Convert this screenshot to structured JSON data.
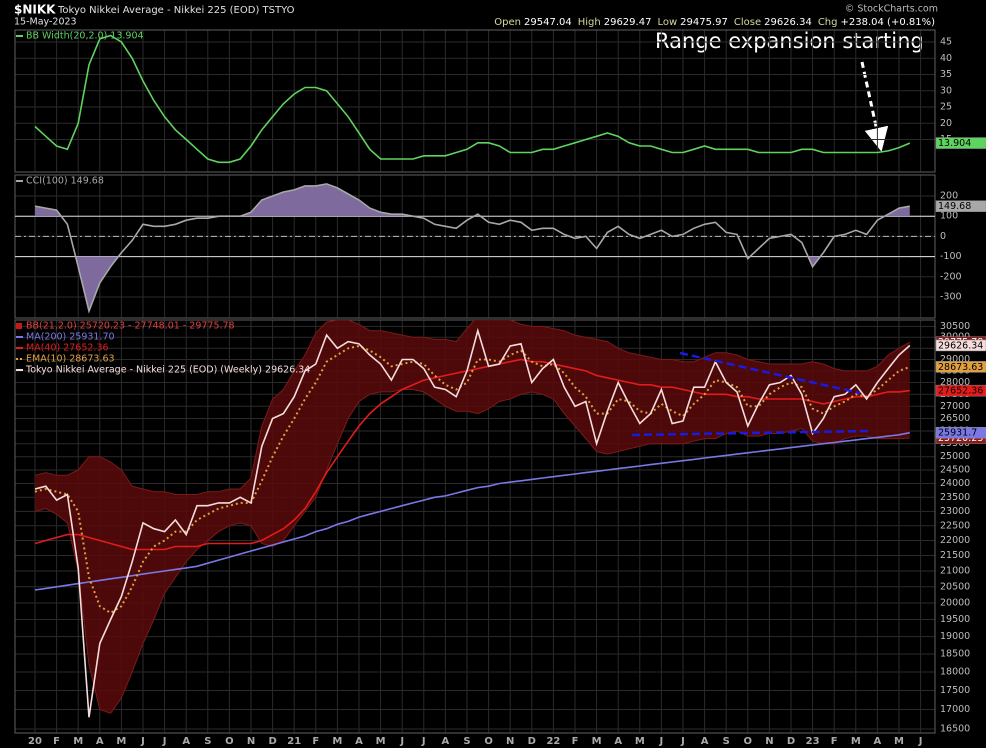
{
  "header": {
    "symbol": "$NIKK",
    "name": "Tokyo Nikkei Average - Nikkei 225 (EOD) TSTYO",
    "date": "15-May-2023",
    "credit": "© StockCharts.com",
    "quote": [
      {
        "label": "Open",
        "value": 29547.04
      },
      {
        "label": "High",
        "value": 29629.47
      },
      {
        "label": "Low",
        "value": 29475.97
      },
      {
        "label": "Close",
        "value": 29626.34
      },
      {
        "label": "Chg",
        "value": "+238.04 (+0.81%)"
      }
    ]
  },
  "chart_data": [
    {
      "type": "line",
      "annotation": "Range expansion starting",
      "ylim": [
        5,
        48.7
      ],
      "yticks": [
        15,
        20,
        25,
        30,
        35,
        40,
        45
      ],
      "grid": true,
      "series": [
        {
          "name": "BB Width(20,2.0) 13.904",
          "color": "#5fd35f",
          "values": [
            19,
            16,
            13,
            12,
            20,
            38,
            46,
            47,
            45,
            40,
            33,
            27,
            22,
            18,
            15,
            12,
            9,
            8,
            8,
            9,
            13,
            18,
            22,
            26,
            29,
            31,
            31,
            30,
            26,
            22,
            17,
            12,
            9,
            9,
            9,
            9,
            10,
            10,
            10,
            11,
            12,
            14,
            14,
            13,
            11,
            11,
            11,
            12,
            12,
            13,
            14,
            15,
            16,
            17,
            16,
            14,
            13,
            13,
            12,
            11,
            11,
            12,
            13,
            12,
            12,
            12,
            12,
            11,
            11,
            11,
            11,
            12,
            12,
            11,
            11,
            11,
            11,
            11,
            11,
            11.5,
            12.5,
            13.904,
            null,
            null
          ]
        }
      ]
    },
    {
      "type": "line",
      "ylim": [
        -404,
        304
      ],
      "yticks": [
        -300,
        -200,
        -100,
        0,
        100,
        200
      ],
      "grid": true,
      "reference_lines": [
        100,
        0,
        -100
      ],
      "fill_color": "#7e6a9c",
      "series": [
        {
          "name": "CCI(100) 149.68",
          "color": "#a8a8a8",
          "values": [
            150,
            140,
            130,
            60,
            -150,
            -370,
            -230,
            -150,
            -80,
            -20,
            60,
            50,
            50,
            60,
            80,
            90,
            90,
            100,
            100,
            100,
            120,
            180,
            200,
            220,
            230,
            250,
            250,
            260,
            240,
            210,
            180,
            140,
            120,
            110,
            110,
            100,
            90,
            60,
            50,
            40,
            80,
            110,
            70,
            60,
            80,
            70,
            30,
            40,
            40,
            10,
            -10,
            0,
            -60,
            20,
            50,
            10,
            -10,
            10,
            30,
            0,
            10,
            40,
            60,
            70,
            20,
            10,
            -110,
            -60,
            -10,
            0,
            10,
            -30,
            -150,
            -80,
            0,
            10,
            30,
            10,
            80,
            110,
            140,
            149.68,
            null,
            null
          ]
        }
      ]
    },
    {
      "type": "line",
      "log": true,
      "ylim": [
        16400,
        30800
      ],
      "grid": true,
      "yticks": [
        16500,
        17000,
        17500,
        18000,
        18500,
        19000,
        19500,
        20000,
        20500,
        21000,
        21500,
        22000,
        22500,
        23000,
        23500,
        24000,
        24500,
        25000,
        25500,
        26000,
        26500,
        27000,
        27500,
        28000,
        28500,
        29000,
        29500,
        30000,
        30500
      ],
      "categories": [
        "20",
        null,
        "F",
        null,
        "M",
        null,
        "A",
        null,
        "M",
        null,
        "J",
        null,
        "J",
        null,
        "A",
        null,
        "S",
        null,
        "O",
        null,
        "N",
        null,
        "D",
        null,
        "21",
        null,
        "F",
        null,
        "M",
        null,
        "A",
        null,
        "M",
        null,
        "J",
        null,
        "J",
        null,
        "A",
        null,
        "S",
        null,
        "O",
        null,
        "N",
        null,
        "D",
        null,
        "22",
        null,
        "F",
        null,
        "M",
        null,
        "A",
        null,
        "M",
        null,
        "J",
        null,
        "J",
        null,
        "A",
        null,
        "S",
        null,
        "O",
        null,
        "N",
        null,
        "D",
        null,
        "23",
        null,
        "F",
        null,
        "M",
        null,
        "A",
        null,
        "M",
        null,
        "J",
        null
      ],
      "series": [
        {
          "name": "BB(21,2.0) 25720.23 - 27748.01 - 29775.78",
          "color": "#c41a1a",
          "fill": "#5a0a0a",
          "upper": [
            24300,
            24400,
            24300,
            24300,
            24500,
            25000,
            25000,
            24800,
            24500,
            23900,
            23800,
            23700,
            23700,
            23600,
            23600,
            23600,
            23700,
            23700,
            23800,
            23800,
            24200,
            26200,
            27300,
            27700,
            28500,
            29200,
            30200,
            30700,
            30800,
            30800,
            30600,
            30300,
            30300,
            30200,
            30100,
            30000,
            30000,
            29900,
            29900,
            29800,
            30400,
            31000,
            31000,
            30900,
            30800,
            30600,
            30500,
            30500,
            30400,
            30300,
            30100,
            30000,
            29900,
            29800,
            29500,
            29300,
            29200,
            29100,
            29000,
            29000,
            28900,
            28900,
            29100,
            29300,
            29300,
            29200,
            29000,
            28900,
            28800,
            28800,
            28800,
            28800,
            28900,
            28800,
            28600,
            28500,
            28500,
            28500,
            28700,
            29200,
            29500,
            29775.78,
            null,
            null
          ],
          "lower": [
            23000,
            23100,
            22900,
            22600,
            21000,
            18200,
            17000,
            16900,
            17300,
            18000,
            18800,
            19500,
            20300,
            20800,
            21300,
            21700,
            22000,
            22300,
            22500,
            22600,
            22500,
            21900,
            21800,
            22000,
            22500,
            23000,
            23500,
            24500,
            25500,
            26500,
            27200,
            27500,
            27600,
            27600,
            27700,
            27700,
            27600,
            27300,
            27000,
            26800,
            26800,
            26700,
            26900,
            27200,
            27300,
            27500,
            27600,
            27500,
            27300,
            26700,
            26200,
            25700,
            25200,
            25100,
            25200,
            25300,
            25400,
            25500,
            25500,
            25500,
            25500,
            25600,
            25700,
            25700,
            25900,
            26000,
            25800,
            25800,
            25900,
            25900,
            26000,
            26100,
            25600,
            25500,
            25500,
            25700,
            25800,
            25800,
            25700,
            25700,
            25700,
            25720.23,
            null,
            null
          ]
        },
        {
          "name": "MA(200) 25931.70",
          "color": "#7b78e6",
          "values": [
            20400,
            20450,
            20500,
            20550,
            20600,
            20650,
            20700,
            20750,
            20800,
            20850,
            20900,
            20950,
            21000,
            21050,
            21100,
            21150,
            21250,
            21350,
            21450,
            21550,
            21650,
            21750,
            21850,
            21950,
            22050,
            22150,
            22300,
            22400,
            22550,
            22650,
            22800,
            22900,
            23000,
            23100,
            23200,
            23300,
            23400,
            23500,
            23550,
            23650,
            23750,
            23850,
            23900,
            24000,
            24050,
            24100,
            24150,
            24200,
            24250,
            24300,
            24350,
            24400,
            24450,
            24500,
            24550,
            24600,
            24650,
            24700,
            24750,
            24800,
            24850,
            24900,
            24950,
            25000,
            25050,
            25100,
            25150,
            25200,
            25250,
            25300,
            25350,
            25400,
            25450,
            25500,
            25550,
            25600,
            25650,
            25700,
            25750,
            25800,
            25850,
            25931.7,
            null,
            null
          ]
        },
        {
          "name": "MA(40) 27652.36",
          "color": "#e41b1b",
          "values": [
            21900,
            22000,
            22100,
            22200,
            22200,
            22100,
            22000,
            21900,
            21800,
            21700,
            21700,
            21700,
            21700,
            21800,
            21800,
            21800,
            21900,
            21900,
            21900,
            21900,
            21900,
            22000,
            22200,
            22400,
            22700,
            23100,
            23700,
            24400,
            25000,
            25600,
            26200,
            26700,
            27100,
            27400,
            27700,
            27900,
            28100,
            28200,
            28300,
            28400,
            28500,
            28600,
            28700,
            28800,
            28900,
            29000,
            28900,
            28900,
            28800,
            28700,
            28600,
            28500,
            28300,
            28200,
            28100,
            28000,
            27900,
            27900,
            27800,
            27800,
            27700,
            27600,
            27500,
            27500,
            27500,
            27400,
            27400,
            27300,
            27300,
            27300,
            27300,
            27300,
            27200,
            27100,
            27200,
            27300,
            27400,
            27400,
            27500,
            27600,
            27600,
            27652.36,
            null,
            null
          ]
        },
        {
          "name": "EMA(10) 28673.63",
          "color": "#e0a040",
          "dotted": true,
          "values": [
            23700,
            23800,
            23700,
            23600,
            23000,
            20800,
            19900,
            19700,
            19900,
            20500,
            21300,
            21800,
            22000,
            22300,
            22300,
            22700,
            22900,
            23100,
            23200,
            23300,
            23300,
            24100,
            25000,
            25800,
            26500,
            27300,
            28000,
            28900,
            29200,
            29500,
            29600,
            29400,
            29100,
            28700,
            28800,
            28900,
            28800,
            28300,
            27900,
            27700,
            28000,
            29000,
            29000,
            28900,
            29200,
            29400,
            28900,
            28700,
            28800,
            28400,
            27800,
            27400,
            26700,
            26700,
            27300,
            27200,
            26800,
            26700,
            27100,
            26800,
            26600,
            27100,
            27500,
            28100,
            28000,
            27800,
            27000,
            27000,
            27500,
            27800,
            28000,
            27800,
            26900,
            26700,
            27000,
            27200,
            27500,
            27400,
            27700,
            28100,
            28500,
            28673.63,
            null,
            null
          ]
        },
        {
          "name": "Tokyo Nikkei Average - Nikkei 225 (EOD) (Weekly) 29626.34",
          "color": "#f6dcdc",
          "values": [
            23800,
            23900,
            23400,
            23600,
            21100,
            16800,
            18800,
            19500,
            20200,
            21300,
            22600,
            22400,
            22300,
            22700,
            22200,
            23200,
            23200,
            23300,
            23300,
            23500,
            23300,
            25400,
            26500,
            26700,
            27400,
            28500,
            28800,
            30100,
            29500,
            29800,
            29700,
            29200,
            28800,
            28100,
            29000,
            29000,
            28600,
            27800,
            27700,
            27400,
            28500,
            30300,
            28700,
            28800,
            29600,
            29700,
            28000,
            28600,
            29000,
            27800,
            27000,
            27200,
            25500,
            26800,
            28000,
            27100,
            26300,
            26700,
            27700,
            26300,
            26400,
            27800,
            27800,
            28900,
            28000,
            27600,
            26200,
            27100,
            27900,
            28000,
            28300,
            27500,
            25900,
            26500,
            27400,
            27500,
            27900,
            27300,
            28000,
            28600,
            29200,
            29626.34,
            null,
            null
          ]
        }
      ]
    }
  ]
}
